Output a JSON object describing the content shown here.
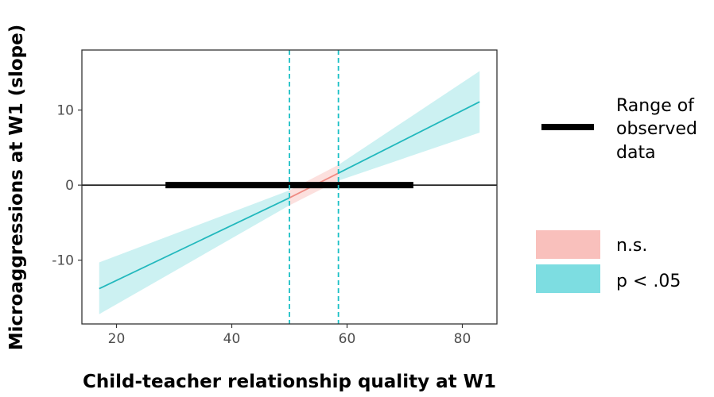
{
  "chart_data": {
    "type": "line",
    "title": "",
    "xlabel": "Child-teacher relationship quality at W1",
    "ylabel": "Microaggressions at W1  (slope)",
    "xlim": [
      14,
      86
    ],
    "ylim": [
      -18.5,
      18
    ],
    "x_ticks": [
      20,
      40,
      60,
      80
    ],
    "y_ticks": [
      10,
      0,
      -10
    ],
    "grid": false,
    "reference_line_y": 0,
    "observed_range": [
      28.5,
      71.5
    ],
    "region_bounds": [
      50,
      58.5
    ],
    "x": [
      17,
      50,
      58.5,
      83
    ],
    "estimate": [
      -13.8,
      -1.7,
      1.6,
      11.1
    ],
    "ci_lower": [
      -17.2,
      -2.7,
      0.6,
      7.0
    ],
    "ci_upper": [
      -10.3,
      -0.7,
      2.7,
      15.2
    ],
    "series": [
      {
        "name": "n.s.",
        "color": "#f8766d"
      },
      {
        "name": "p < .05",
        "color": "#00bfc4"
      }
    ],
    "legend": {
      "position": "right",
      "range_label_lines": [
        "Range of",
        "observed",
        "data"
      ],
      "items": [
        "n.s.",
        "p < .05"
      ]
    }
  },
  "colors": {
    "sig_ribbon": "#8fdfe3",
    "sig_line": "#22b8bd",
    "ns_ribbon": "#f9c6c2",
    "ns_line": "#ef8a82",
    "bound": "#19bfc5",
    "range_bar": "#000000"
  }
}
